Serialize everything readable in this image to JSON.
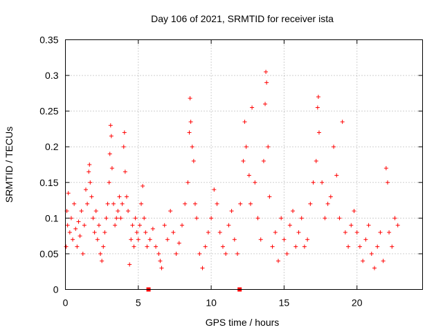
{
  "chart_data": {
    "type": "scatter",
    "title": "Day 106 of 2021, SRMTID for receiver ista",
    "xlabel": "GPS time / hours",
    "ylabel": "SRMTID / TECUs",
    "xlim": [
      0,
      24.5
    ],
    "ylim": [
      0,
      0.35
    ],
    "xticks": [
      0,
      5,
      10,
      15,
      20
    ],
    "xtick_labels": [
      "0",
      "5",
      "10",
      "15",
      "20"
    ],
    "yticks": [
      0,
      0.05,
      0.1,
      0.15,
      0.2,
      0.25,
      0.3,
      0.35
    ],
    "ytick_labels": [
      "0",
      "0.05",
      "0.1",
      "0.15",
      "0.2",
      "0.25",
      "0.3",
      "0.35"
    ],
    "grid": true,
    "marker": "+",
    "color": "#ff0000",
    "data_gaps_at_hours": [
      5.7,
      11.95
    ],
    "series": [
      {
        "name": "SRMTID",
        "points": [
          [
            0.05,
            0.06
          ],
          [
            0.1,
            0.11
          ],
          [
            0.15,
            0.09
          ],
          [
            0.2,
            0.135
          ],
          [
            0.3,
            0.08
          ],
          [
            0.4,
            0.1
          ],
          [
            0.5,
            0.07
          ],
          [
            0.6,
            0.12
          ],
          [
            0.7,
            0.085
          ],
          [
            0.8,
            0.06
          ],
          [
            0.9,
            0.095
          ],
          [
            1.0,
            0.075
          ],
          [
            1.1,
            0.11
          ],
          [
            1.2,
            0.05
          ],
          [
            1.3,
            0.09
          ],
          [
            1.4,
            0.14
          ],
          [
            1.5,
            0.12
          ],
          [
            1.6,
            0.165
          ],
          [
            1.65,
            0.175
          ],
          [
            1.7,
            0.15
          ],
          [
            1.8,
            0.13
          ],
          [
            1.9,
            0.1
          ],
          [
            2.0,
            0.08
          ],
          [
            2.1,
            0.11
          ],
          [
            2.2,
            0.07
          ],
          [
            2.3,
            0.09
          ],
          [
            2.4,
            0.05
          ],
          [
            2.5,
            0.04
          ],
          [
            2.6,
            0.06
          ],
          [
            2.7,
            0.08
          ],
          [
            2.8,
            0.1
          ],
          [
            2.9,
            0.12
          ],
          [
            3.0,
            0.15
          ],
          [
            3.05,
            0.19
          ],
          [
            3.1,
            0.23
          ],
          [
            3.15,
            0.215
          ],
          [
            3.2,
            0.17
          ],
          [
            3.3,
            0.12
          ],
          [
            3.4,
            0.09
          ],
          [
            3.5,
            0.1
          ],
          [
            3.6,
            0.11
          ],
          [
            3.7,
            0.13
          ],
          [
            3.8,
            0.1
          ],
          [
            3.9,
            0.12
          ],
          [
            4.0,
            0.2
          ],
          [
            4.05,
            0.22
          ],
          [
            4.1,
            0.165
          ],
          [
            4.2,
            0.13
          ],
          [
            4.3,
            0.11
          ],
          [
            4.4,
            0.035
          ],
          [
            4.5,
            0.07
          ],
          [
            4.6,
            0.09
          ],
          [
            4.7,
            0.06
          ],
          [
            4.8,
            0.1
          ],
          [
            4.9,
            0.08
          ],
          [
            5.0,
            0.07
          ],
          [
            5.1,
            0.09
          ],
          [
            5.2,
            0.12
          ],
          [
            5.3,
            0.145
          ],
          [
            5.4,
            0.1
          ],
          [
            5.5,
            0.08
          ],
          [
            5.6,
            0.06
          ],
          [
            5.8,
            0.07
          ],
          [
            6.0,
            0.085
          ],
          [
            6.2,
            0.06
          ],
          [
            6.4,
            0.05
          ],
          [
            6.5,
            0.04
          ],
          [
            6.6,
            0.03
          ],
          [
            6.8,
            0.09
          ],
          [
            7.0,
            0.07
          ],
          [
            7.2,
            0.11
          ],
          [
            7.4,
            0.08
          ],
          [
            7.6,
            0.05
          ],
          [
            7.8,
            0.065
          ],
          [
            8.0,
            0.09
          ],
          [
            8.2,
            0.12
          ],
          [
            8.4,
            0.15
          ],
          [
            8.5,
            0.22
          ],
          [
            8.55,
            0.268
          ],
          [
            8.6,
            0.235
          ],
          [
            8.7,
            0.2
          ],
          [
            8.8,
            0.18
          ],
          [
            8.9,
            0.12
          ],
          [
            9.0,
            0.1
          ],
          [
            9.2,
            0.05
          ],
          [
            9.4,
            0.03
          ],
          [
            9.6,
            0.06
          ],
          [
            9.8,
            0.08
          ],
          [
            10.0,
            0.1
          ],
          [
            10.2,
            0.14
          ],
          [
            10.4,
            0.12
          ],
          [
            10.6,
            0.08
          ],
          [
            10.8,
            0.06
          ],
          [
            11.0,
            0.05
          ],
          [
            11.2,
            0.09
          ],
          [
            11.4,
            0.11
          ],
          [
            11.6,
            0.07
          ],
          [
            11.8,
            0.05
          ],
          [
            12.0,
            0.12
          ],
          [
            12.2,
            0.18
          ],
          [
            12.3,
            0.235
          ],
          [
            12.4,
            0.2
          ],
          [
            12.6,
            0.16
          ],
          [
            12.7,
            0.12
          ],
          [
            12.8,
            0.255
          ],
          [
            13.0,
            0.15
          ],
          [
            13.2,
            0.1
          ],
          [
            13.4,
            0.07
          ],
          [
            13.6,
            0.18
          ],
          [
            13.7,
            0.26
          ],
          [
            13.75,
            0.305
          ],
          [
            13.8,
            0.29
          ],
          [
            13.9,
            0.2
          ],
          [
            14.0,
            0.13
          ],
          [
            14.2,
            0.06
          ],
          [
            14.4,
            0.08
          ],
          [
            14.6,
            0.04
          ],
          [
            14.8,
            0.1
          ],
          [
            15.0,
            0.07
          ],
          [
            15.2,
            0.05
          ],
          [
            15.4,
            0.09
          ],
          [
            15.6,
            0.11
          ],
          [
            15.8,
            0.06
          ],
          [
            16.0,
            0.08
          ],
          [
            16.2,
            0.1
          ],
          [
            16.4,
            0.06
          ],
          [
            16.6,
            0.07
          ],
          [
            16.8,
            0.12
          ],
          [
            17.0,
            0.15
          ],
          [
            17.2,
            0.18
          ],
          [
            17.3,
            0.255
          ],
          [
            17.35,
            0.27
          ],
          [
            17.4,
            0.22
          ],
          [
            17.6,
            0.15
          ],
          [
            17.8,
            0.1
          ],
          [
            18.0,
            0.12
          ],
          [
            18.2,
            0.13
          ],
          [
            18.4,
            0.2
          ],
          [
            18.6,
            0.16
          ],
          [
            18.8,
            0.1
          ],
          [
            19.0,
            0.235
          ],
          [
            19.2,
            0.08
          ],
          [
            19.4,
            0.06
          ],
          [
            19.6,
            0.09
          ],
          [
            19.8,
            0.11
          ],
          [
            20.0,
            0.08
          ],
          [
            20.2,
            0.06
          ],
          [
            20.4,
            0.04
          ],
          [
            20.6,
            0.07
          ],
          [
            20.8,
            0.09
          ],
          [
            21.0,
            0.05
          ],
          [
            21.2,
            0.03
          ],
          [
            21.4,
            0.06
          ],
          [
            21.6,
            0.08
          ],
          [
            21.8,
            0.04
          ],
          [
            22.0,
            0.17
          ],
          [
            22.1,
            0.15
          ],
          [
            22.2,
            0.08
          ],
          [
            22.4,
            0.06
          ],
          [
            22.6,
            0.1
          ],
          [
            22.8,
            0.09
          ]
        ]
      }
    ]
  }
}
